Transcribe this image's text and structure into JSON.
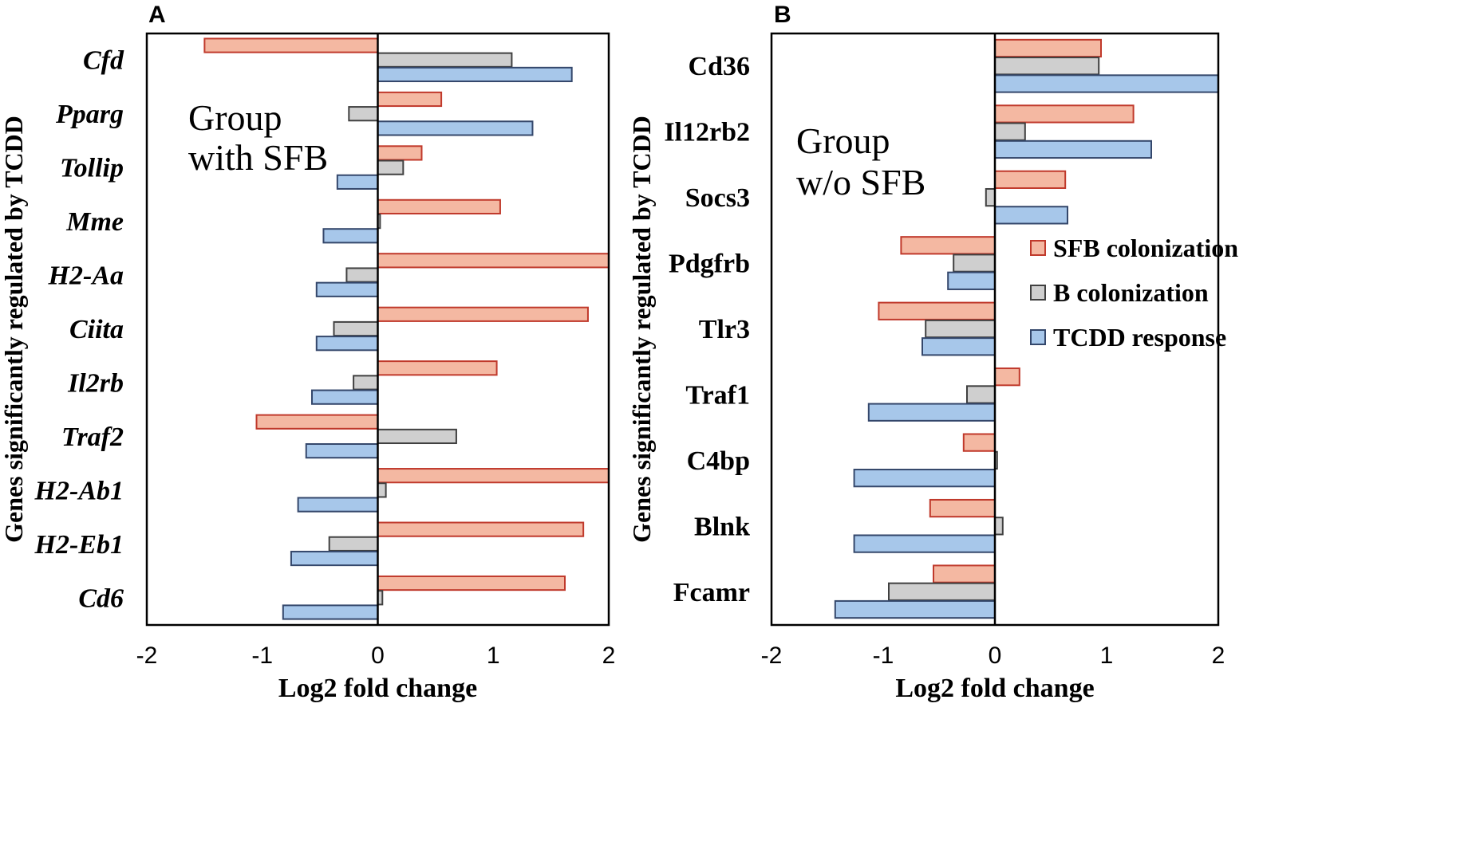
{
  "chart_data": [
    {
      "type": "bar",
      "orientation": "horizontal",
      "panel_label": "A",
      "title": "",
      "annotation": [
        "Group",
        "with SFB"
      ],
      "xlabel": "Log2 fold change",
      "ylabel": "Genes significantly regulated by TCDD",
      "xlim": [
        -2,
        2
      ],
      "xticks": [
        "-2",
        "-1",
        "0",
        "1",
        "2"
      ],
      "categories": [
        "Cfd",
        "Pparg",
        "Tollip",
        "Mme",
        "H2-Aa",
        "Ciita",
        "Il2rb",
        "Traf2",
        "H2-Ab1",
        "H2-Eb1",
        "Cd6"
      ],
      "series": [
        {
          "name": "SFB colonization",
          "values": [
            -1.5,
            0.55,
            0.38,
            1.06,
            2.1,
            1.82,
            1.03,
            -1.05,
            2.1,
            1.78,
            1.62
          ]
        },
        {
          "name": "B colonization",
          "values": [
            1.16,
            -0.25,
            0.22,
            0.02,
            -0.27,
            -0.38,
            -0.21,
            0.68,
            0.07,
            -0.42,
            0.04
          ]
        },
        {
          "name": "TCDD response",
          "values": [
            1.68,
            1.34,
            -0.35,
            -0.47,
            -0.53,
            -0.53,
            -0.57,
            -0.62,
            -0.69,
            -0.75,
            -0.82
          ]
        }
      ],
      "legend": false
    },
    {
      "type": "bar",
      "orientation": "horizontal",
      "panel_label": "B",
      "title": "",
      "annotation": [
        "Group",
        "w/o SFB"
      ],
      "xlabel": "Log2 fold change",
      "ylabel": "Genes significantly regulated by TCDD",
      "xlim": [
        -2,
        2
      ],
      "xticks": [
        "-2",
        "-1",
        "0",
        "1",
        "2"
      ],
      "categories": [
        "Cd36",
        "Il12rb2",
        "Socs3",
        "Pdgfrb",
        "Tlr3",
        "Traf1",
        "C4bp",
        "Blnk",
        "Fcamr"
      ],
      "series": [
        {
          "name": "SFB colonization",
          "values": [
            0.95,
            1.24,
            0.63,
            -0.84,
            -1.04,
            0.22,
            -0.28,
            -0.58,
            -0.55
          ]
        },
        {
          "name": "B colonization",
          "values": [
            0.93,
            0.27,
            -0.08,
            -0.37,
            -0.62,
            -0.25,
            0.02,
            0.07,
            -0.95
          ]
        },
        {
          "name": "TCDD response",
          "values": [
            2.0,
            1.4,
            0.65,
            -0.42,
            -0.65,
            -1.13,
            -1.26,
            -1.26,
            -1.43
          ]
        }
      ],
      "legend": true,
      "legend_position": "right"
    }
  ],
  "colors": {
    "sfb_fill": "#f4b8a2",
    "sfb_stroke": "#c0392b",
    "b_fill": "#cfcfcf",
    "b_stroke": "#404040",
    "tcdd_fill": "#a7c7ea",
    "tcdd_stroke": "#34476b"
  }
}
